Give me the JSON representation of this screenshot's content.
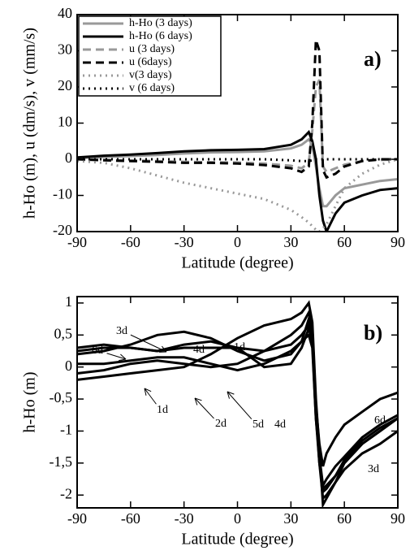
{
  "chart_data": [
    {
      "type": "line",
      "annotation": "a)",
      "xlabel": "Latitude (degree)",
      "ylabel": "h-Ho (m), u (dm/s), v (mm/s)",
      "x": [
        -90,
        -75,
        -60,
        -45,
        -30,
        -15,
        0,
        15,
        30,
        36,
        40,
        42,
        44,
        46,
        48,
        50,
        55,
        60,
        70,
        80,
        90
      ],
      "xlim": [
        -90,
        90
      ],
      "xticks": [
        -90,
        -60,
        -30,
        0,
        30,
        60,
        90
      ],
      "ylim": [
        -20,
        40
      ],
      "yticks": [
        -20,
        -10,
        0,
        10,
        20,
        30,
        40
      ],
      "legend": "upper left",
      "series": [
        {
          "name": "h-Ho (3 days)",
          "color": "#999999",
          "dash": "solid",
          "values": [
            0.3,
            0.6,
            0.9,
            1.2,
            1.6,
            1.9,
            2,
            2.2,
            3,
            4,
            5.5,
            4,
            -2,
            -8,
            -13,
            -13,
            -10,
            -8,
            -7,
            -6,
            -5.5
          ]
        },
        {
          "name": "h-Ho (6 days)",
          "color": "#000000",
          "dash": "solid",
          "values": [
            0.5,
            1,
            1.3,
            1.7,
            2.2,
            2.5,
            2.6,
            2.8,
            4,
            5.5,
            7.5,
            5,
            0,
            -10,
            -17,
            -20,
            -15,
            -12,
            -10,
            -8.5,
            -8
          ]
        },
        {
          "name": "u (3 days)",
          "color": "#999999",
          "dash": "dashed",
          "values": [
            0,
            -0.2,
            -0.3,
            -0.5,
            -0.7,
            -0.8,
            -0.9,
            -1.2,
            -1.8,
            -2.5,
            -1,
            8,
            20,
            22,
            -2,
            -3.5,
            -2.5,
            -1.5,
            -0.5,
            -0.2,
            0
          ]
        },
        {
          "name": "u (6days)",
          "color": "#000000",
          "dash": "dashed",
          "values": [
            0,
            -0.3,
            -0.5,
            -0.7,
            -1,
            -1,
            -1.2,
            -1.6,
            -2.5,
            -3.5,
            -2,
            10,
            33,
            30,
            -3,
            -5,
            -4,
            -2,
            -0.5,
            0,
            0
          ]
        },
        {
          "name": "v(3 days)",
          "color": "#999999",
          "dash": "dotted",
          "values": [
            -0.5,
            -1,
            -2.5,
            -4.5,
            -6.5,
            -8,
            -9.5,
            -11,
            -14,
            -16,
            -17.5,
            -18.5,
            -19.5,
            -20,
            -19,
            -18,
            -13,
            -8,
            -4,
            -1.5,
            0
          ]
        },
        {
          "name": "v (6 days)",
          "color": "#000000",
          "dash": "dotted",
          "values": [
            0,
            0,
            0,
            0,
            0,
            0,
            0,
            0,
            -0.3,
            -0.5,
            -0.5,
            -0.3,
            0,
            0,
            0,
            0,
            0,
            0,
            0,
            0,
            0
          ]
        }
      ]
    },
    {
      "type": "line",
      "annotation": "b)",
      "xlabel": "Latitude (degree)",
      "ylabel": "h-Ho (m)",
      "x": [
        -90,
        -75,
        -60,
        -45,
        -30,
        -15,
        0,
        15,
        30,
        36,
        40,
        42,
        44,
        46,
        48,
        50,
        55,
        60,
        70,
        80,
        90
      ],
      "xlim": [
        -90,
        90
      ],
      "xticks": [
        -90,
        -60,
        -30,
        0,
        30,
        60,
        90
      ],
      "ylim": [
        -2.2,
        1.1
      ],
      "yticks": [
        -2,
        {
          "value": -1.5,
          "label": "-1,5"
        },
        -1,
        {
          "value": -0.5,
          "label": "-0,5"
        },
        0,
        {
          "value": 0.5,
          "label": "0,5"
        },
        1
      ],
      "series": [
        {
          "name": "1d",
          "color": "#000000",
          "dash": "solid",
          "values": [
            -0.2,
            -0.15,
            -0.1,
            -0.05,
            0,
            0.2,
            0.45,
            0.65,
            0.75,
            0.85,
            1,
            0.7,
            -0.5,
            -1.3,
            -2.15,
            -2.05,
            -1.8,
            -1.5,
            -1.2,
            -1,
            -0.8
          ]
        },
        {
          "name": "2d",
          "color": "#000000",
          "dash": "solid",
          "values": [
            -0.1,
            -0.05,
            0.05,
            0.1,
            0.05,
            0,
            0.05,
            0.25,
            0.5,
            0.65,
            0.85,
            0.6,
            -0.6,
            -1.4,
            -1.95,
            -1.9,
            -1.7,
            -1.45,
            -1.15,
            -0.95,
            -0.8
          ]
        },
        {
          "name": "3d",
          "color": "#000000",
          "dash": "solid",
          "values": [
            0.2,
            0.25,
            0.35,
            0.5,
            0.55,
            0.45,
            0.25,
            0.1,
            0.2,
            0.4,
            0.75,
            0.5,
            -0.7,
            -1.5,
            -2.05,
            -2,
            -1.8,
            -1.6,
            -1.35,
            -1.2,
            -1
          ]
        },
        {
          "name": "4d",
          "color": "#000000",
          "dash": "solid",
          "values": [
            0.25,
            0.3,
            0.3,
            0.25,
            0.35,
            0.4,
            0.3,
            0,
            0.05,
            0.3,
            0.6,
            0.4,
            -0.8,
            -1.5,
            -1.9,
            -1.85,
            -1.7,
            -1.5,
            -1.2,
            -1,
            -0.8
          ]
        },
        {
          "name": "5d",
          "color": "#000000",
          "dash": "solid",
          "values": [
            0.05,
            0.05,
            0.1,
            0.15,
            0.15,
            0.05,
            -0.05,
            0.05,
            0.25,
            0.4,
            0.5,
            0.3,
            -0.8,
            -1.4,
            -1.85,
            -1.75,
            -1.55,
            -1.4,
            -1.1,
            -0.9,
            -0.75
          ]
        },
        {
          "name": "6d",
          "color": "#000000",
          "dash": "solid",
          "values": [
            0.3,
            0.35,
            0.3,
            0.25,
            0.3,
            0.3,
            0.3,
            0.25,
            0.35,
            0.5,
            0.65,
            0.4,
            -0.6,
            -1.2,
            -1.55,
            -1.35,
            -1.1,
            -0.9,
            -0.7,
            -0.5,
            -0.4
          ]
        }
      ]
    }
  ]
}
